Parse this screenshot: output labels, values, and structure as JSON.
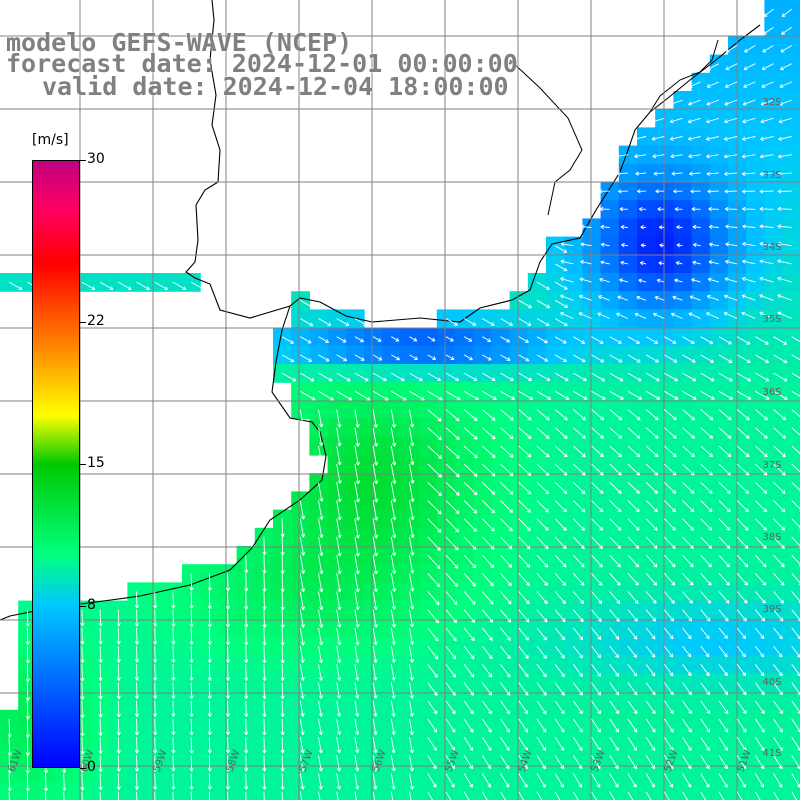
{
  "header": {
    "model": "modelo GEFS-WAVE (NCEP)",
    "forecast_date": "forecast date: 2024-12-01 00:00:00",
    "valid_date": "valid date: 2024-12-04 18:00:00"
  },
  "colorbar": {
    "units": "[m/s]",
    "ticks": [
      "30",
      "22",
      "15",
      "8",
      "0"
    ],
    "tick_values": [
      30,
      22,
      15,
      8,
      0
    ],
    "range": [
      0,
      30
    ],
    "colors": [
      "#0000ff",
      "#00c8ff",
      "#00ff80",
      "#00c800",
      "#ffff00",
      "#ff8000",
      "#ff0000",
      "#c00080"
    ]
  },
  "map": {
    "land_color": "#ffffff",
    "coastline_color": "#000000",
    "grid_color": "#808080",
    "lat_labels": [
      "32S",
      "33S",
      "34S",
      "35S",
      "36S",
      "37S",
      "38S",
      "39S",
      "40S",
      "41S"
    ],
    "lon_labels": [
      "61W",
      "60W",
      "59W",
      "58W",
      "57W",
      "56W",
      "55W",
      "54W",
      "53W",
      "52W",
      "51W"
    ],
    "lon_range": [
      -61,
      -50
    ],
    "lat_range": [
      -42,
      -31
    ],
    "vector_color": "#ffffff"
  }
}
